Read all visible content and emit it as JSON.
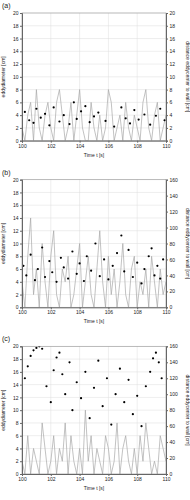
{
  "chart_data": [
    {
      "type": "line",
      "title": "(a)",
      "x_label": "Time t [s]",
      "y_label": "eddydiameter [cm]",
      "y2_label": "distance eddycenter to wall [cm]",
      "xlim": [
        100,
        110
      ],
      "xticks": [
        100,
        102,
        104,
        106,
        108,
        110
      ],
      "ylim": [
        0,
        20
      ],
      "yticks": [
        0,
        2,
        4,
        6,
        8,
        10,
        12,
        14,
        16,
        18,
        20
      ],
      "y2lim": [
        0,
        20
      ],
      "y2ticks": [
        0,
        2,
        4,
        6,
        8,
        10,
        12,
        14,
        16,
        18,
        20
      ],
      "grid": true,
      "series": [
        {
          "type": "line",
          "color": "#a8a8a8",
          "x": [
            100,
            100.2,
            100.4,
            100.6,
            100.8,
            101,
            101.2,
            101.4,
            101.6,
            101.8,
            102,
            102.2,
            102.4,
            102.6,
            102.8,
            103,
            103.2,
            103.4,
            103.6,
            103.8,
            104,
            104.2,
            104.4,
            104.6,
            104.8,
            105,
            105.2,
            105.4,
            105.6,
            105.8,
            106,
            106.2,
            106.4,
            106.6,
            106.8,
            107,
            107.2,
            107.4,
            107.6,
            107.8,
            108,
            108.2,
            108.4,
            108.6,
            108.8,
            109,
            109.2,
            109.4,
            109.6,
            109.8,
            110
          ],
          "values": [
            2,
            0,
            4,
            6,
            0,
            8,
            2,
            0,
            4,
            6,
            2,
            0,
            6,
            8,
            4,
            0,
            2,
            6,
            0,
            4,
            8,
            2,
            0,
            0,
            6,
            2,
            0,
            4,
            0,
            2,
            8,
            6,
            0,
            2,
            4,
            0,
            6,
            2,
            0,
            4,
            2,
            0,
            6,
            8,
            2,
            0,
            4,
            6,
            0,
            2,
            4
          ]
        },
        {
          "type": "scatter",
          "color": "#000000",
          "marker": "circle",
          "axis": "y2",
          "x": [
            100.2,
            100.5,
            100.8,
            101.0,
            101.3,
            101.6,
            101.9,
            102.2,
            102.6,
            102.9,
            103.3,
            103.6,
            103.8,
            104.1,
            104.4,
            104.7,
            105.0,
            105.3,
            105.8,
            106.4,
            106.9,
            107.2,
            107.5,
            107.8,
            108.1,
            108.5,
            108.9,
            109.3,
            109.6,
            109.9
          ],
          "values": [
            4.5,
            3.2,
            2.8,
            5.0,
            3.6,
            4.2,
            2.4,
            5.2,
            3.0,
            4.0,
            2.6,
            6.0,
            3.4,
            4.6,
            5.4,
            2.9,
            3.8,
            4.4,
            3.1,
            2.2,
            5.2,
            3.5,
            2.7,
            4.8,
            3.3,
            4.1,
            2.5,
            3.9,
            5.0,
            3.2
          ]
        }
      ]
    },
    {
      "type": "line",
      "title": "(b)",
      "x_label": "Time t [s]",
      "y_label": "eddydiameter [cm]",
      "y2_label": "distance eddycenter to wall [cm]",
      "xlim": [
        100,
        110
      ],
      "xticks": [
        100,
        102,
        104,
        106,
        108,
        110
      ],
      "ylim": [
        0,
        20
      ],
      "yticks": [
        0,
        2,
        4,
        6,
        8,
        10,
        12,
        14,
        16,
        18,
        20
      ],
      "y2lim": [
        0,
        160
      ],
      "y2ticks": [
        0,
        20,
        40,
        60,
        80,
        100,
        120,
        140,
        160
      ],
      "grid": true,
      "series": [
        {
          "type": "line",
          "color": "#a8a8a8",
          "x": [
            100,
            100.2,
            100.4,
            100.6,
            100.8,
            101,
            101.2,
            101.4,
            101.6,
            101.8,
            102,
            102.2,
            102.4,
            102.6,
            102.8,
            103,
            103.2,
            103.4,
            103.6,
            103.8,
            104,
            104.2,
            104.4,
            104.6,
            104.8,
            105,
            105.2,
            105.4,
            105.6,
            105.8,
            106,
            106.2,
            106.4,
            106.6,
            106.8,
            107,
            107.2,
            107.4,
            107.6,
            107.8,
            108,
            108.2,
            108.4,
            108.6,
            108.8,
            109,
            109.2,
            109.4,
            109.6,
            109.8,
            110
          ],
          "values": [
            4,
            0,
            8,
            14,
            2,
            6,
            0,
            10,
            4,
            0,
            8,
            12,
            2,
            0,
            6,
            4,
            8,
            0,
            2,
            6,
            10,
            0,
            4,
            8,
            2,
            0,
            6,
            12,
            4,
            0,
            8,
            2,
            6,
            0,
            4,
            10,
            2,
            0,
            6,
            8,
            0,
            4,
            2,
            6,
            0,
            8,
            4,
            0,
            6,
            2,
            4
          ]
        },
        {
          "type": "scatter",
          "color": "#000000",
          "marker": "circle",
          "axis": "y2",
          "x": [
            100.1,
            100.3,
            100.6,
            100.9,
            101.1,
            101.4,
            101.6,
            101.9,
            102.1,
            102.4,
            102.7,
            102.9,
            103.2,
            103.5,
            103.8,
            104.0,
            104.3,
            104.5,
            104.8,
            105.1,
            105.4,
            105.7,
            106.0,
            106.3,
            106.6,
            106.9,
            107.1,
            107.4,
            107.7,
            108.0,
            108.3,
            108.5,
            108.8,
            109.0,
            109.2,
            109.4,
            109.6,
            109.8
          ],
          "values": [
            52,
            40,
            66,
            34,
            48,
            75,
            38,
            58,
            44,
            32,
            62,
            50,
            36,
            70,
            42,
            55,
            33,
            64,
            46,
            80,
            39,
            60,
            35,
            52,
            68,
            90,
            45,
            72,
            38,
            56,
            30,
            48,
            64,
            74,
            40,
            52,
            36,
            60
          ]
        }
      ]
    },
    {
      "type": "line",
      "title": "(c)",
      "x_label": "Time t [s]",
      "y_label": "eddydiameter [cm]",
      "y2_label": "distance eddycenter to wall [cm]",
      "xlim": [
        100,
        110
      ],
      "xticks": [
        100,
        102,
        104,
        106,
        108,
        110
      ],
      "ylim": [
        0,
        20
      ],
      "yticks": [
        0,
        2,
        4,
        6,
        8,
        10,
        12,
        14,
        16,
        18,
        20
      ],
      "y2lim": [
        0,
        160
      ],
      "y2ticks": [
        0,
        20,
        40,
        60,
        80,
        100,
        120,
        140,
        160
      ],
      "grid": true,
      "series": [
        {
          "type": "line",
          "color": "#a8a8a8",
          "x": [
            100,
            100.2,
            100.4,
            100.6,
            100.8,
            101,
            101.2,
            101.4,
            101.6,
            101.8,
            102,
            102.2,
            102.4,
            102.6,
            102.8,
            103,
            103.2,
            103.4,
            103.6,
            103.8,
            104,
            104.2,
            104.4,
            104.6,
            104.8,
            105,
            105.2,
            105.4,
            105.6,
            105.8,
            106,
            106.2,
            106.4,
            106.6,
            106.8,
            107,
            107.2,
            107.4,
            107.6,
            107.8,
            108,
            108.2,
            108.4,
            108.6,
            108.8,
            109,
            109.2,
            109.4,
            109.6,
            109.8,
            110
          ],
          "values": [
            2,
            0,
            6,
            0,
            4,
            2,
            0,
            8,
            4,
            0,
            2,
            6,
            0,
            4,
            2,
            8,
            0,
            6,
            2,
            0,
            4,
            0,
            10,
            2,
            6,
            0,
            4,
            2,
            0,
            6,
            4,
            0,
            2,
            8,
            0,
            4,
            6,
            2,
            0,
            4,
            0,
            6,
            2,
            8,
            4,
            0,
            2,
            0,
            6,
            4,
            2
          ]
        },
        {
          "type": "scatter",
          "color": "#000000",
          "marker": "circle",
          "axis": "y2",
          "x": [
            100.2,
            100.4,
            100.6,
            100.8,
            101.0,
            101.2,
            101.4,
            101.7,
            102.0,
            102.2,
            102.4,
            102.6,
            102.8,
            103.0,
            103.3,
            103.5,
            103.8,
            104.1,
            104.4,
            104.7,
            105.0,
            105.3,
            105.6,
            105.9,
            106.2,
            106.5,
            106.8,
            107.1,
            107.4,
            107.7,
            108.0,
            108.3,
            108.6,
            108.9,
            109.1,
            109.3,
            109.5,
            109.7
          ],
          "values": [
            120,
            135,
            148,
            155,
            158,
            160,
            157,
            110,
            90,
            130,
            146,
            152,
            125,
            100,
            140,
            80,
            115,
            95,
            128,
            70,
            108,
            142,
            85,
            120,
            62,
            100,
            132,
            90,
            118,
            75,
            98,
            60,
            110,
            128,
            145,
            152,
            140,
            120
          ]
        }
      ]
    }
  ]
}
